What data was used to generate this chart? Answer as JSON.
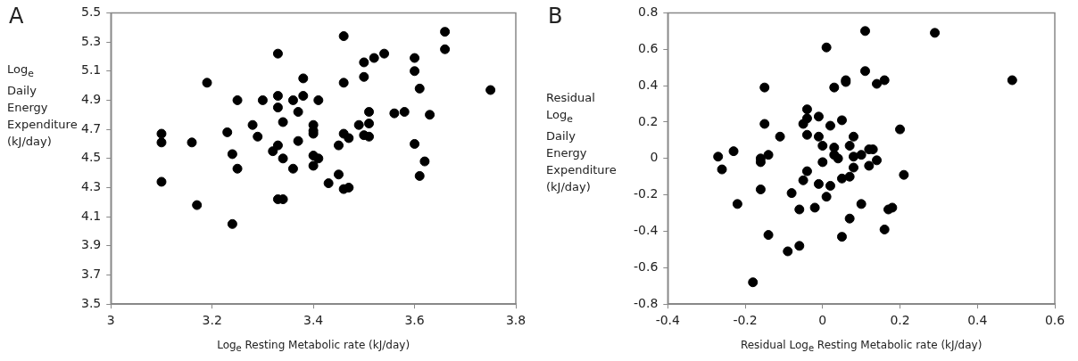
{
  "chart_data": [
    {
      "type": "scatter",
      "title": "A",
      "xlabel": "Log$_{e}$ Resting Metabolic rate (kJ/day)",
      "ylabel": "Log$_{e}$ Daily Energy Expenditure (kJ/day)",
      "xlim": [
        3,
        3.8
      ],
      "xticks": [
        3,
        3.2,
        3.4,
        3.6,
        3.8
      ],
      "ylim": [
        3.5,
        5.5
      ],
      "yticks": [
        3.5,
        3.7,
        3.9,
        4.1,
        4.3,
        4.5,
        4.7,
        4.9,
        5.1,
        5.3,
        5.5
      ],
      "marker": "circle",
      "series": [
        {
          "color": "#000000",
          "x": [
            3.1,
            3.1,
            3.1,
            3.16,
            3.17,
            3.19,
            3.23,
            3.24,
            3.25,
            3.25,
            3.24,
            3.28,
            3.29,
            3.3,
            3.32,
            3.33,
            3.33,
            3.33,
            3.33,
            3.34,
            3.33,
            3.34,
            3.34,
            3.36,
            3.36,
            3.37,
            3.37,
            3.38,
            3.38,
            3.4,
            3.4,
            3.4,
            3.4,
            3.4,
            3.41,
            3.41,
            3.43,
            3.45,
            3.45,
            3.46,
            3.46,
            3.46,
            3.46,
            3.47,
            3.47,
            3.49,
            3.5,
            3.5,
            3.5,
            3.51,
            3.51,
            3.51,
            3.52,
            3.54,
            3.56,
            3.58,
            3.6,
            3.6,
            3.61,
            3.6,
            3.62,
            3.61,
            3.63,
            3.66,
            3.66,
            3.75
          ],
          "values": [
            4.34,
            4.67,
            4.61,
            4.61,
            4.18,
            5.02,
            4.68,
            4.53,
            4.43,
            4.9,
            4.05,
            4.73,
            4.65,
            4.9,
            4.55,
            4.59,
            4.93,
            5.22,
            4.85,
            4.5,
            4.22,
            4.22,
            4.75,
            4.43,
            4.9,
            4.62,
            4.82,
            4.93,
            5.05,
            4.73,
            4.69,
            4.67,
            4.45,
            4.52,
            4.5,
            4.9,
            4.33,
            4.39,
            4.59,
            4.67,
            5.02,
            5.34,
            4.29,
            4.3,
            4.64,
            4.73,
            5.16,
            4.66,
            5.06,
            4.82,
            4.65,
            4.74,
            5.19,
            5.22,
            4.81,
            4.82,
            5.19,
            5.1,
            4.98,
            4.6,
            4.48,
            4.38,
            4.8,
            5.37,
            5.25,
            4.97
          ]
        }
      ]
    },
    {
      "type": "scatter",
      "title": "B",
      "xlabel": "Residual Log$_{e}$ Resting Metabolic rate (kJ/day)",
      "ylabel": "Residual Log$_{e}$ Daily Energy Expenditure (kJ/day)",
      "xlim": [
        -0.4,
        0.6
      ],
      "xticks": [
        -0.4,
        -0.2,
        0,
        0.2,
        0.4,
        0.6
      ],
      "ylim": [
        -0.8,
        0.8
      ],
      "yticks": [
        -0.8,
        -0.6,
        -0.4,
        -0.2,
        0,
        0.2,
        0.4,
        0.6,
        0.8
      ],
      "marker": "circle",
      "series": [
        {
          "color": "#000000",
          "x": [
            -0.27,
            -0.26,
            -0.23,
            -0.22,
            -0.18,
            -0.16,
            -0.16,
            -0.16,
            -0.15,
            -0.15,
            -0.14,
            -0.14,
            -0.11,
            -0.09,
            -0.08,
            -0.06,
            -0.06,
            -0.05,
            -0.05,
            -0.04,
            -0.04,
            -0.04,
            -0.04,
            -0.02,
            -0.01,
            -0.01,
            -0.01,
            0,
            0,
            0.01,
            0.01,
            0.02,
            0.02,
            0.03,
            0.03,
            0.03,
            0.04,
            0.05,
            0.05,
            0.05,
            0.06,
            0.06,
            0.07,
            0.07,
            0.07,
            0.08,
            0.08,
            0.08,
            0.1,
            0.1,
            0.11,
            0.11,
            0.12,
            0.12,
            0.13,
            0.14,
            0.14,
            0.16,
            0.16,
            0.17,
            0.18,
            0.2,
            0.21,
            0.29,
            0.49
          ],
          "values": [
            0.01,
            -0.06,
            0.04,
            -0.25,
            -0.68,
            0,
            -0.02,
            -0.17,
            0.39,
            0.19,
            -0.42,
            0.02,
            0.12,
            -0.51,
            -0.19,
            -0.48,
            -0.28,
            0.19,
            -0.12,
            0.13,
            -0.07,
            0.27,
            0.22,
            -0.27,
            -0.14,
            0.23,
            0.12,
            0.07,
            -0.02,
            -0.21,
            0.61,
            0.18,
            -0.15,
            0.02,
            0.39,
            0.06,
            0,
            0.21,
            -0.43,
            -0.11,
            0.43,
            0.42,
            0.07,
            -0.33,
            -0.1,
            0.12,
            -0.05,
            0.01,
            -0.25,
            0.02,
            0.7,
            0.48,
            -0.04,
            0.05,
            0.05,
            0.41,
            -0.01,
            -0.39,
            0.43,
            -0.28,
            -0.27,
            0.16,
            -0.09,
            0.69,
            0.43
          ]
        }
      ]
    }
  ]
}
